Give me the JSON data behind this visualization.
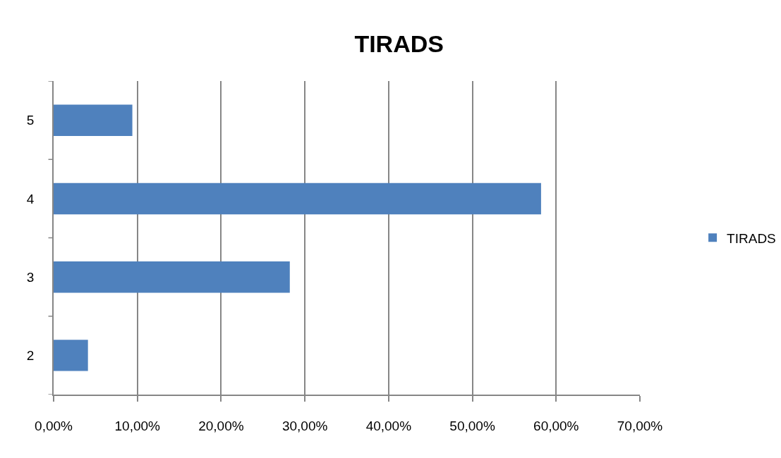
{
  "chart_data": {
    "type": "bar",
    "orientation": "horizontal",
    "title": "TIRADS",
    "categories": [
      "5",
      "4",
      "3",
      "2"
    ],
    "series": [
      {
        "name": "TIRADS",
        "color": "#4f81bd",
        "values": [
          9.4,
          58.2,
          28.2,
          4.1
        ]
      }
    ],
    "xlim": [
      0,
      70
    ],
    "xticks": [
      {
        "value": 0,
        "label": "0,00%"
      },
      {
        "value": 10,
        "label": "10,00%"
      },
      {
        "value": 20,
        "label": "20,00%"
      },
      {
        "value": 30,
        "label": "30,00%"
      },
      {
        "value": 40,
        "label": "40,00%"
      },
      {
        "value": 50,
        "label": "50,00%"
      },
      {
        "value": 60,
        "label": "60,00%"
      },
      {
        "value": 70,
        "label": "70,00%"
      }
    ],
    "grid": "x",
    "legend": "right"
  }
}
